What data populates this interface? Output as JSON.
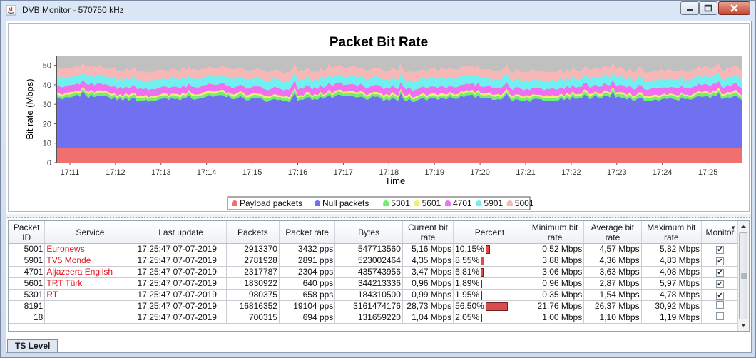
{
  "window": {
    "title": "DVB Monitor - 570750 kHz"
  },
  "chart_data": {
    "type": "area",
    "title": "Packet Bit Rate",
    "xlabel": "Time",
    "ylabel": "Bit rate (Mbps)",
    "ylim": [
      0,
      55
    ],
    "yticks": [
      "0",
      "10",
      "20",
      "30",
      "40",
      "50"
    ],
    "xticks": [
      "17:11",
      "17:12",
      "17:13",
      "17:14",
      "17:15",
      "17:16",
      "17:17",
      "17:18",
      "17:19",
      "17:20",
      "17:21",
      "17:22",
      "17:23",
      "17:24",
      "17:25"
    ],
    "stacked": true,
    "legend_position": "bottom",
    "series": [
      {
        "name": "Payload packets",
        "color": "#f07070",
        "approx_value": 7.5
      },
      {
        "name": "Null packets",
        "color": "#7070f0",
        "approx_value": 25.5
      },
      {
        "name": "5301",
        "color": "#70f070",
        "approx_value": 1.5
      },
      {
        "name": "5601",
        "color": "#f0f070",
        "approx_value": 1.0
      },
      {
        "name": "4701",
        "color": "#f070f0",
        "approx_value": 3.5
      },
      {
        "name": "5901",
        "color": "#70f0f0",
        "approx_value": 4.3
      },
      {
        "name": "5001",
        "color": "#f8b8b8",
        "approx_value": 4.6
      }
    ]
  },
  "table": {
    "headers": [
      "Packet ID",
      "Service",
      "Last update",
      "Packets",
      "Packet rate",
      "Bytes",
      "Current bit rate",
      "Percent",
      "Minimum bit rate",
      "Average bit rate",
      "Maximum bit rate",
      "Monitor"
    ],
    "rows": [
      {
        "pid": "5001",
        "service": "Euronews",
        "last_update": "17:25:47  07-07-2019",
        "packets": "2913370",
        "packet_rate": "3432 pps",
        "bytes": "547713560",
        "current": "5,16 Mbps",
        "percent": "10,15%",
        "percent_value": 10.15,
        "min": "0,52 Mbps",
        "avg": "4,57 Mbps",
        "max": "5,82 Mbps",
        "monitor": "✔"
      },
      {
        "pid": "5901",
        "service": "TV5 Monde",
        "last_update": "17:25:47  07-07-2019",
        "packets": "2781928",
        "packet_rate": "2891 pps",
        "bytes": "523002464",
        "current": "4,35 Mbps",
        "percent": "8,55%",
        "percent_value": 8.55,
        "min": "3,88 Mbps",
        "avg": "4,36 Mbps",
        "max": "4,83 Mbps",
        "monitor": "✔"
      },
      {
        "pid": "4701",
        "service": "Aljazeera English",
        "last_update": "17:25:47  07-07-2019",
        "packets": "2317787",
        "packet_rate": "2304 pps",
        "bytes": "435743956",
        "current": "3,47 Mbps",
        "percent": "6,81%",
        "percent_value": 6.81,
        "min": "3,06 Mbps",
        "avg": "3,63 Mbps",
        "max": "4,08 Mbps",
        "monitor": "✔"
      },
      {
        "pid": "5601",
        "service": "TRT Türk",
        "last_update": "17:25:47  07-07-2019",
        "packets": "1830922",
        "packet_rate": "640 pps",
        "bytes": "344213336",
        "current": "0,96 Mbps",
        "percent": "1,89%",
        "percent_value": 1.89,
        "min": "0,96 Mbps",
        "avg": "2,87 Mbps",
        "max": "5,97 Mbps",
        "monitor": "✔"
      },
      {
        "pid": "5301",
        "service": "RT",
        "last_update": "17:25:47  07-07-2019",
        "packets": "980375",
        "packet_rate": "658 pps",
        "bytes": "184310500",
        "current": "0,99 Mbps",
        "percent": "1,95%",
        "percent_value": 1.95,
        "min": "0,35 Mbps",
        "avg": "1,54 Mbps",
        "max": "4,78 Mbps",
        "monitor": "✔"
      },
      {
        "pid": "8191",
        "service": "",
        "last_update": "17:25:47  07-07-2019",
        "packets": "16816352",
        "packet_rate": "19104 pps",
        "bytes": "3161474176",
        "current": "28,73 Mbps",
        "percent": "56,50%",
        "percent_value": 56.5,
        "min": "21,76 Mbps",
        "avg": "26,37 Mbps",
        "max": "30,92 Mbps",
        "monitor": ""
      },
      {
        "pid": "18",
        "service": "",
        "last_update": "17:25:47  07-07-2019",
        "packets": "700315",
        "packet_rate": "694 pps",
        "bytes": "131659220",
        "current": "1,04 Mbps",
        "percent": "2,05%",
        "percent_value": 2.05,
        "min": "1,00 Mbps",
        "avg": "1,10 Mbps",
        "max": "1,19 Mbps",
        "monitor": ""
      }
    ]
  },
  "tabs": [
    {
      "label": "TS Level",
      "active": true
    }
  ]
}
